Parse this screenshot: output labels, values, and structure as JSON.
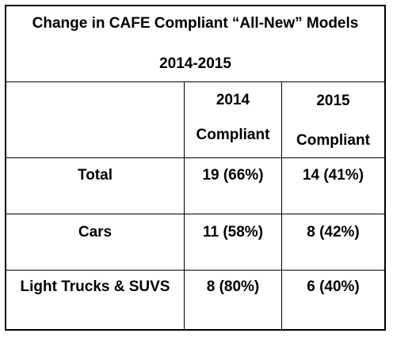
{
  "table": {
    "title_line1": "Change in CAFE Compliant “All-New” Models",
    "title_line2": "2014-2015",
    "header": {
      "blank": "",
      "col2014_line1": "2014",
      "col2014_line2": "Compliant",
      "col2015_line1": "2015",
      "col2015_line2": "Compliant"
    },
    "rows": [
      {
        "label": "Total",
        "v2014": "19 (66%)",
        "v2015": "14 (41%)"
      },
      {
        "label": "Cars",
        "v2014": "11 (58%)",
        "v2015": "8 (42%)"
      },
      {
        "label": "Light Trucks & SUVS",
        "v2014": "8 (80%)",
        "v2015": "6 (40%)"
      }
    ]
  }
}
